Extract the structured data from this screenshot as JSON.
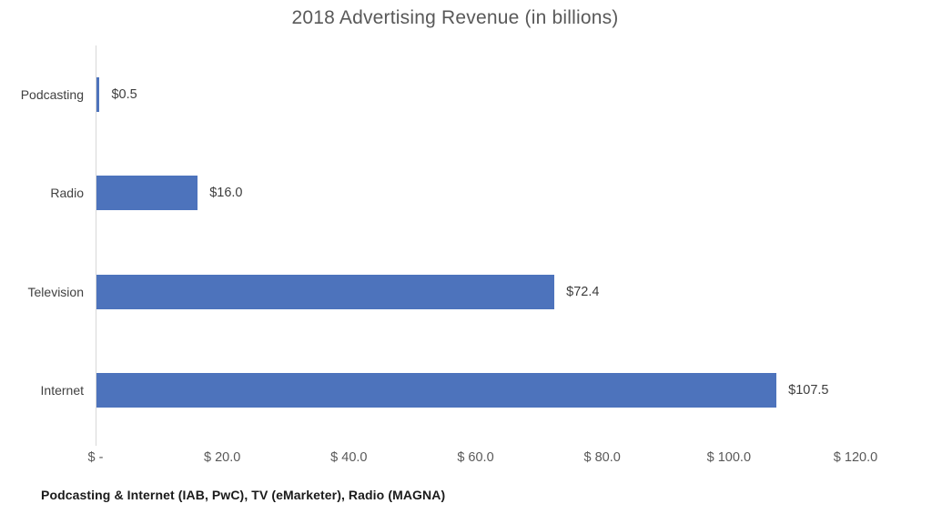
{
  "chart_data": {
    "type": "bar",
    "orientation": "horizontal",
    "title": "2018 Advertising Revenue (in billions)",
    "categories": [
      "Podcasting",
      "Radio",
      "Television",
      "Internet"
    ],
    "values": [
      0.5,
      16.0,
      72.4,
      107.5
    ],
    "value_labels": [
      "$0.5",
      "$16.0",
      "$72.4",
      "$107.5"
    ],
    "x_ticks": [
      {
        "value": 0,
        "label": "$ -"
      },
      {
        "value": 20,
        "label": "$ 20.0"
      },
      {
        "value": 40,
        "label": "$ 40.0"
      },
      {
        "value": 60,
        "label": "$ 60.0"
      },
      {
        "value": 80,
        "label": "$ 80.0"
      },
      {
        "value": 100,
        "label": "$ 100.0"
      },
      {
        "value": 120,
        "label": "$ 120.0"
      }
    ],
    "xlim": [
      0,
      120
    ],
    "grid": false,
    "legend": "none",
    "bar_color": "#4d73bc",
    "axis_line_color": "#d8d8d8",
    "title_color": "#595959",
    "source_note": "Podcasting & Internet (IAB, PwC), TV (eMarketer), Radio (MAGNA)"
  }
}
